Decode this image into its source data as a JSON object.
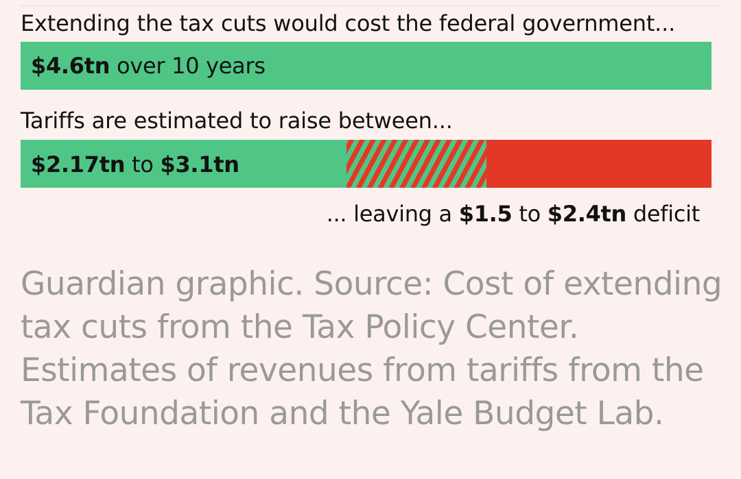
{
  "chart_data": {
    "type": "bar",
    "headings": {
      "cost": "Extending the tax cuts would cost the federal government...",
      "tariffs": "Tariffs are estimated to raise between..."
    },
    "series": [
      {
        "id": "tax_cut_cost",
        "value_tn": 4.6,
        "label_bold": "$4.6tn",
        "label_rest": " over 10 years"
      },
      {
        "id": "tariff_revenue",
        "low_tn": 2.17,
        "high_tn": 3.1,
        "label_low": "$2.17tn",
        "label_mid": " to ",
        "label_high": "$3.1tn"
      }
    ],
    "deficit": {
      "low_tn": 1.5,
      "high_tn": 2.4,
      "prefix": "... leaving a ",
      "low_label": "$1.5",
      "mid": " to ",
      "high_label": "$2.4tn",
      "suffix": " deficit"
    },
    "colors": {
      "revenue_green": "#4fc686",
      "deficit_red": "#e43826",
      "background": "#fdf1ef",
      "source_text": "#999999"
    }
  },
  "source": "Guardian graphic. Source: Cost of extending tax cuts from the Tax Policy Center. Estimates of revenues from tariffs from the Tax Foundation and the Yale Budget Lab."
}
